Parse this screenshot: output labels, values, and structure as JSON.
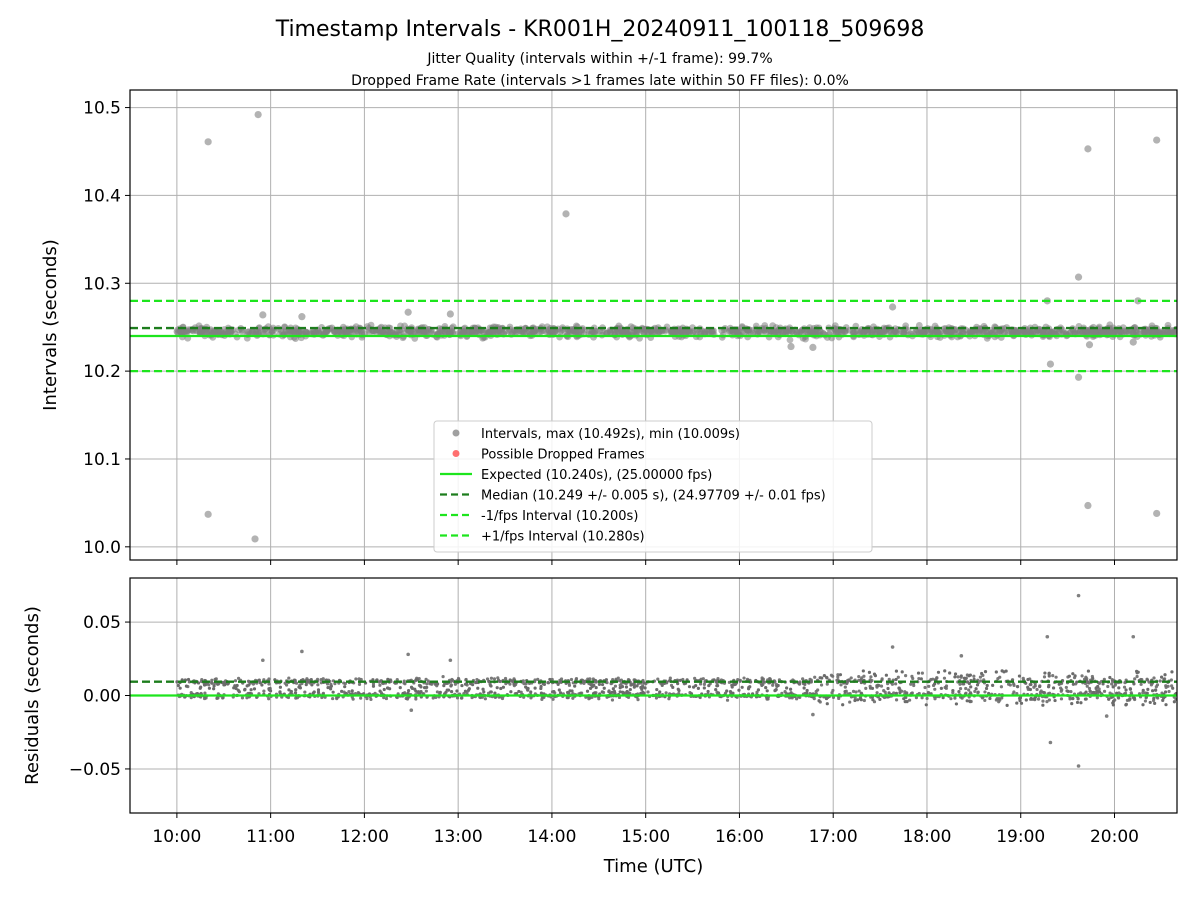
{
  "figure": {
    "title": "Timestamp Intervals - KR001H_20240911_100118_509698",
    "subtitle_line1": "Jitter Quality (intervals within +/-1 frame): 99.7%",
    "subtitle_line2": "Dropped Frame Rate (intervals >1 frames late within 50 FF files): 0.0%"
  },
  "colors": {
    "points": "#808080",
    "residual_points": "#6b6b6b",
    "dropped": "#ff4040",
    "expected": "#1de51d",
    "median": "#1d7d1d",
    "fps_bounds": "#1de51d",
    "grid": "#b0b0b0"
  },
  "chart_data": [
    {
      "type": "scatter",
      "panel": "intervals",
      "ylabel": "Intervals (seconds)",
      "xlabel": "",
      "xlim": [
        "09:30",
        "20:40"
      ],
      "ylim": [
        9.985,
        10.52
      ],
      "yticks": [
        10.0,
        10.1,
        10.2,
        10.3,
        10.4,
        10.5
      ],
      "ytick_labels": [
        "10.0",
        "10.1",
        "10.2",
        "10.3",
        "10.4",
        "10.5"
      ],
      "grid": true,
      "legend_position": "lower center",
      "band": {
        "x_start": "10:00",
        "x_end": "20:40",
        "center": 10.245,
        "spread": 0.005
      },
      "outliers": [
        {
          "x": "10:20",
          "y": 10.461
        },
        {
          "x": "10:52",
          "y": 10.492
        },
        {
          "x": "10:20",
          "y": 10.037
        },
        {
          "x": "10:50",
          "y": 10.009
        },
        {
          "x": "14:09",
          "y": 10.379
        },
        {
          "x": "19:43",
          "y": 10.453
        },
        {
          "x": "20:27",
          "y": 10.463
        },
        {
          "x": "19:43",
          "y": 10.047
        },
        {
          "x": "20:27",
          "y": 10.038
        },
        {
          "x": "19:37",
          "y": 10.307
        },
        {
          "x": "19:37",
          "y": 10.193
        },
        {
          "x": "19:19",
          "y": 10.208
        },
        {
          "x": "17:38",
          "y": 10.273
        },
        {
          "x": "12:28",
          "y": 10.267
        },
        {
          "x": "12:55",
          "y": 10.265
        },
        {
          "x": "20:15",
          "y": 10.28
        },
        {
          "x": "19:17",
          "y": 10.28
        },
        {
          "x": "11:20",
          "y": 10.262
        },
        {
          "x": "10:55",
          "y": 10.264
        },
        {
          "x": "16:33",
          "y": 10.228
        },
        {
          "x": "16:47",
          "y": 10.227
        },
        {
          "x": "19:44",
          "y": 10.23
        },
        {
          "x": "20:12",
          "y": 10.233
        }
      ],
      "lines": [
        {
          "name": "Expected (10.240s), (25.00000 fps)",
          "y": 10.24,
          "style": "solid",
          "color_key": "expected"
        },
        {
          "name": "Median (10.249 +/- 0.005 s), (24.97709 +/- 0.01 fps)",
          "y": 10.249,
          "style": "dashed",
          "color_key": "median"
        },
        {
          "name": "-1/fps Interval (10.200s)",
          "y": 10.2,
          "style": "dashed",
          "color_key": "fps_bounds"
        },
        {
          "name": "+1/fps Interval (10.280s)",
          "y": 10.28,
          "style": "dashed",
          "color_key": "fps_bounds"
        }
      ],
      "legend": [
        {
          "label": "Intervals, max (10.492s), min (10.009s)",
          "kind": "point",
          "color_key": "points"
        },
        {
          "label": "Possible Dropped Frames",
          "kind": "point",
          "color_key": "dropped"
        },
        {
          "label": "Expected (10.240s), (25.00000 fps)",
          "kind": "solid",
          "color_key": "expected"
        },
        {
          "label": "Median (10.249 +/- 0.005 s), (24.97709 +/- 0.01 fps)",
          "kind": "dashed",
          "color_key": "median"
        },
        {
          "label": "-1/fps Interval (10.200s)",
          "kind": "dashed",
          "color_key": "fps_bounds"
        },
        {
          "label": "+1/fps Interval (10.280s)",
          "kind": "dashed",
          "color_key": "fps_bounds"
        }
      ]
    },
    {
      "type": "scatter",
      "panel": "residuals",
      "ylabel": "Residuals (seconds)",
      "xlabel": "Time (UTC)",
      "xlim": [
        "09:30",
        "20:40"
      ],
      "ylim": [
        -0.08,
        0.08
      ],
      "yticks": [
        -0.05,
        0.0,
        0.05
      ],
      "ytick_labels": [
        "−0.05",
        "0.00",
        "0.05"
      ],
      "xticks": [
        "10:00",
        "11:00",
        "12:00",
        "13:00",
        "14:00",
        "15:00",
        "16:00",
        "17:00",
        "18:00",
        "19:00",
        "20:00"
      ],
      "grid": true,
      "bands": [
        {
          "x_start": "10:00",
          "x_end": "20:40",
          "center": 0.0095,
          "spread": 0.002
        },
        {
          "x_start": "10:00",
          "x_end": "20:40",
          "center": 0.0,
          "spread": 0.002
        }
      ],
      "outliers": [
        {
          "x": "19:37",
          "y": 0.068
        },
        {
          "x": "19:17",
          "y": 0.04
        },
        {
          "x": "20:12",
          "y": 0.04
        },
        {
          "x": "17:38",
          "y": 0.033
        },
        {
          "x": "11:20",
          "y": 0.03
        },
        {
          "x": "12:28",
          "y": 0.028
        },
        {
          "x": "18:22",
          "y": 0.027
        },
        {
          "x": "19:19",
          "y": -0.032
        },
        {
          "x": "19:37",
          "y": -0.048
        },
        {
          "x": "19:55",
          "y": -0.014
        },
        {
          "x": "12:30",
          "y": -0.01
        },
        {
          "x": "16:47",
          "y": -0.013
        },
        {
          "x": "10:55",
          "y": 0.024
        },
        {
          "x": "12:55",
          "y": 0.024
        }
      ],
      "lines": [
        {
          "name": "Expected",
          "y": 0.0,
          "style": "solid",
          "color_key": "expected"
        },
        {
          "name": "Median",
          "y": 0.0094,
          "style": "dashed",
          "color_key": "median"
        }
      ]
    }
  ]
}
